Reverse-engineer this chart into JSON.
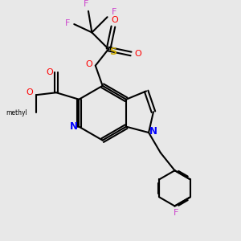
{
  "bg_color": "#e8e8e8",
  "bond_color": "#000000",
  "N_color": "#0000ff",
  "O_color": "#ff0000",
  "F_color": "#cc44cc",
  "S_color": "#ccaa00",
  "lw": 1.5,
  "fig_w": 3.0,
  "fig_h": 3.0,
  "dpi": 100,
  "xlim": [
    0,
    10
  ],
  "ylim": [
    0,
    10
  ]
}
